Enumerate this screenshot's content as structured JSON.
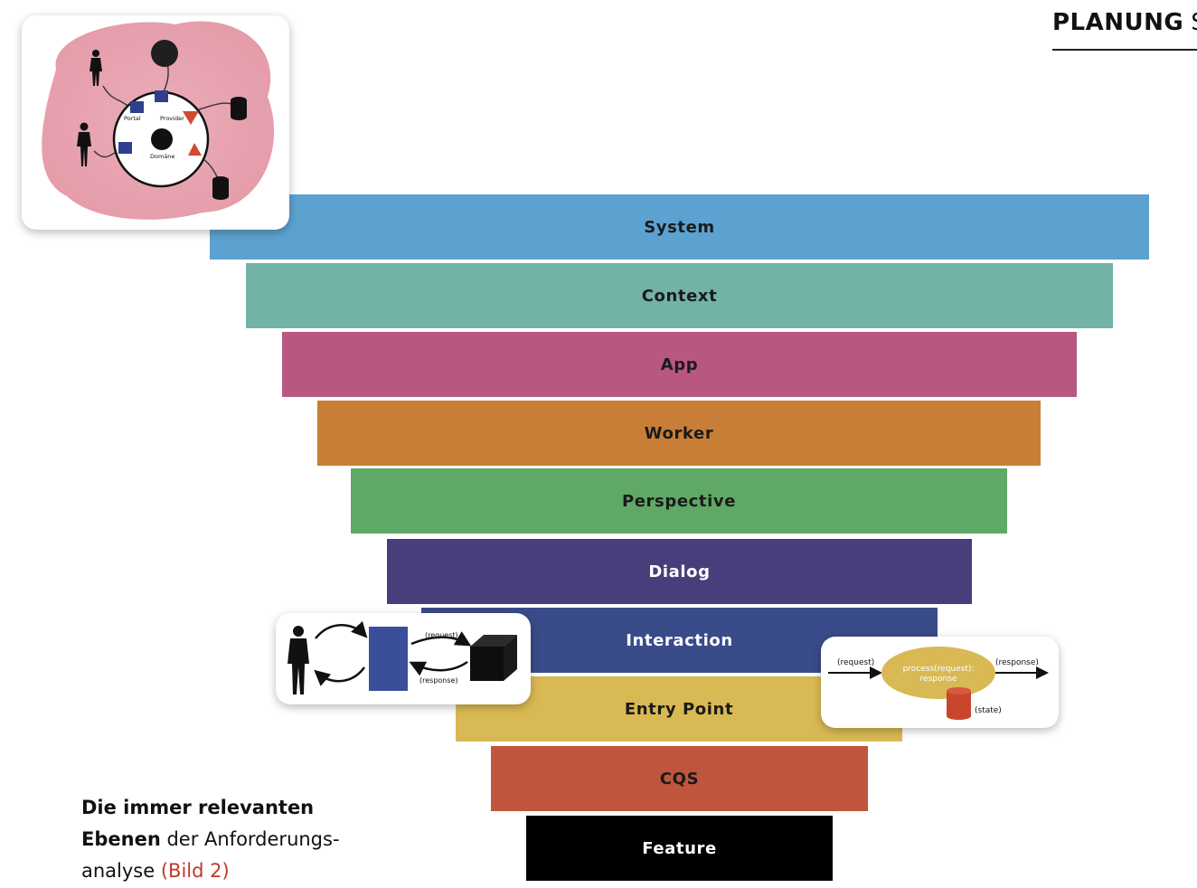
{
  "header": {
    "label_bold": "PLANUNG",
    "label_rest": "SL"
  },
  "layers": [
    {
      "label": "System",
      "color": "#5ca2d0",
      "text_color": "#1a1a1a"
    },
    {
      "label": "Context",
      "color": "#72b2a7",
      "text_color": "#1a1a1a"
    },
    {
      "label": "App",
      "color": "#b85882",
      "text_color": "#1a1a1a"
    },
    {
      "label": "Worker",
      "color": "#c97e37",
      "text_color": "#1a1a1a"
    },
    {
      "label": "Perspective",
      "color": "#5fa866",
      "text_color": "#1a1a1a"
    },
    {
      "label": "Dialog",
      "color": "#4a3d7b",
      "text_color": "#ffffff"
    },
    {
      "label": "Interaction",
      "color": "#3a4b8a",
      "text_color": "#ffffff"
    },
    {
      "label": "Entry Point",
      "color": "#d9b953",
      "text_color": "#1a1a1a"
    },
    {
      "label": "CQS",
      "color": "#bf553d",
      "text_color": "#1a1a1a"
    },
    {
      "label": "Feature",
      "color": "#000000",
      "text_color": "#ffffff"
    }
  ],
  "system_card": {
    "portal": "Portal",
    "provider": "Provider",
    "domain": "Domäne"
  },
  "interaction_card": {
    "request": "(request)",
    "response": "(response)"
  },
  "entry_card": {
    "request": "(request)",
    "response": "(response)",
    "process_line1": "process(request):",
    "process_line2": "response",
    "state": "(state)"
  },
  "caption": {
    "bold": "Die immer relevanten Ebenen",
    "normal": " der Anforderungs-analyse ",
    "ref": "(Bild 2)"
  }
}
